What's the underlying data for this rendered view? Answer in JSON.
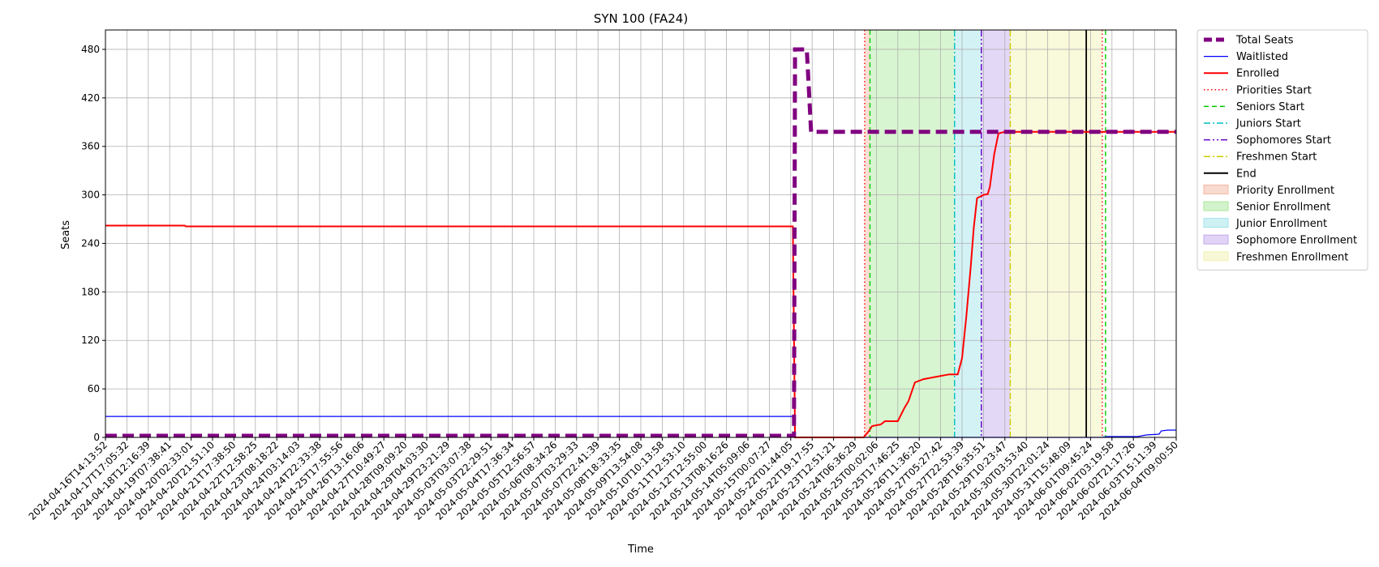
{
  "chart_data": {
    "type": "line",
    "title": "SYN 100 (FA24)",
    "xlabel": "Time",
    "ylabel": "Seats",
    "ylim": [
      0,
      504
    ],
    "yticks": [
      0,
      60,
      120,
      180,
      240,
      300,
      360,
      420,
      480
    ],
    "grid": true,
    "legend_position": "outside-right",
    "x_tick_labels": [
      "2024-04-16T14:13:52",
      "2024-04-17T17:05:32",
      "2024-04-18T12:16:39",
      "2024-04-19T07:38:41",
      "2024-04-20T02:33:01",
      "2024-04-20T21:51:10",
      "2024-04-21T17:38:50",
      "2024-04-22T12:58:25",
      "2024-04-23T08:18:22",
      "2024-04-24T03:14:03",
      "2024-04-24T22:33:38",
      "2024-04-25T17:55:56",
      "2024-04-26T13:16:06",
      "2024-04-27T10:49:27",
      "2024-04-28T09:09:20",
      "2024-04-29T04:03:30",
      "2024-04-29T23:21:29",
      "2024-05-03T03:07:38",
      "2024-05-03T22:29:51",
      "2024-05-04T17:36:34",
      "2024-05-05T12:56:57",
      "2024-05-06T08:34:26",
      "2024-05-07T03:29:33",
      "2024-05-07T22:41:39",
      "2024-05-08T18:33:35",
      "2024-05-09T13:54:08",
      "2024-05-10T10:13:58",
      "2024-05-11T12:53:10",
      "2024-05-12T12:55:00",
      "2024-05-13T08:16:26",
      "2024-05-14T05:09:06",
      "2024-05-15T00:07:27",
      "2024-05-22T01:44:05",
      "2024-05-22T19:17:55",
      "2024-05-23T12:51:21",
      "2024-05-24T06:36:29",
      "2024-05-25T00:02:06",
      "2024-05-25T17:46:25",
      "2024-05-26T11:36:20",
      "2024-05-27T05:27:42",
      "2024-05-27T22:53:39",
      "2024-05-28T16:35:51",
      "2024-05-29T10:23:47",
      "2024-05-30T03:53:40",
      "2024-05-30T22:01:24",
      "2024-05-31T15:48:09",
      "2024-06-01T09:45:24",
      "2024-06-02T03:19:58",
      "2024-06-02T21:17:26",
      "2024-06-03T15:11:39",
      "2024-06-04T09:00:50"
    ],
    "x_range": [
      0,
      50
    ],
    "series": [
      {
        "name": "Total Seats",
        "color": "#800080",
        "style": "dashed-thick",
        "points": [
          [
            0,
            2
          ],
          [
            32.15,
            2
          ],
          [
            32.2,
            480
          ],
          [
            32.75,
            480
          ],
          [
            32.95,
            378
          ],
          [
            50,
            378
          ]
        ]
      },
      {
        "name": "Waitlisted",
        "color": "#0000ff",
        "style": "solid-thin",
        "points": [
          [
            0,
            26
          ],
          [
            32.15,
            26
          ],
          [
            32.2,
            0
          ],
          [
            46.5,
            0
          ],
          [
            46.8,
            1
          ],
          [
            48.2,
            1
          ],
          [
            48.6,
            3
          ],
          [
            49.2,
            4
          ],
          [
            49.3,
            8
          ],
          [
            49.6,
            9
          ],
          [
            50,
            9
          ]
        ]
      },
      {
        "name": "Enrolled",
        "color": "#ff0000",
        "style": "solid",
        "points": [
          [
            0,
            262
          ],
          [
            3.7,
            262
          ],
          [
            3.75,
            261
          ],
          [
            32.1,
            261
          ],
          [
            32.2,
            0
          ],
          [
            35.4,
            0
          ],
          [
            35.65,
            8
          ],
          [
            35.8,
            14
          ],
          [
            36.2,
            16
          ],
          [
            36.4,
            20
          ],
          [
            37.0,
            20
          ],
          [
            37.3,
            36
          ],
          [
            37.5,
            45
          ],
          [
            37.8,
            68
          ],
          [
            38.2,
            72
          ],
          [
            38.8,
            75
          ],
          [
            39.4,
            78
          ],
          [
            39.8,
            78
          ],
          [
            40.0,
            98
          ],
          [
            40.2,
            150
          ],
          [
            40.4,
            210
          ],
          [
            40.55,
            260
          ],
          [
            40.7,
            296
          ],
          [
            41.0,
            300
          ],
          [
            41.2,
            301
          ],
          [
            41.3,
            310
          ],
          [
            41.5,
            350
          ],
          [
            41.7,
            376
          ],
          [
            42.0,
            378
          ],
          [
            50,
            378
          ]
        ]
      }
    ],
    "vertical_markers": [
      {
        "name": "Priorities Start",
        "color": "#ff0000",
        "style": "dotted",
        "x": 35.45
      },
      {
        "name": "Seniors Start",
        "color": "#00cc00",
        "style": "dashed",
        "x": 35.7
      },
      {
        "name": "Juniors Start",
        "color": "#00bfbf",
        "style": "dashdot",
        "x": 39.65
      },
      {
        "name": "Sophomores Start",
        "color": "#6600cc",
        "style": "dashdotdot",
        "x": 40.9
      },
      {
        "name": "Freshmen Start",
        "color": "#cccc00",
        "style": "dashdot",
        "x": 42.25
      },
      {
        "name": "End",
        "color": "#000000",
        "style": "solid",
        "x": 45.8
      },
      {
        "name": "",
        "color": "#ff0000",
        "style": "dotted",
        "x": 46.55
      },
      {
        "name": "",
        "color": "#00cc00",
        "style": "dashed",
        "x": 46.7
      }
    ],
    "spans": [
      {
        "name": "Priority Enrollment",
        "color": "#f4b6a0",
        "x0": 35.45,
        "x1": 35.7
      },
      {
        "name": "Senior Enrollment",
        "color": "#a8e89a",
        "x0": 35.7,
        "x1": 39.65
      },
      {
        "name": "Junior Enrollment",
        "color": "#9ee3ea",
        "x0": 39.65,
        "x1": 40.9
      },
      {
        "name": "Sophomore Enrollment",
        "color": "#c3a8ee",
        "x0": 40.9,
        "x1": 42.25
      },
      {
        "name": "Freshmen Enrollment",
        "color": "#f2f2b0",
        "x0": 42.25,
        "x1": 46.55
      }
    ],
    "legend": [
      {
        "label": "Total Seats",
        "kind": "line",
        "color": "#800080",
        "style": "dashed-thick"
      },
      {
        "label": "Waitlisted",
        "kind": "line",
        "color": "#0000ff",
        "style": "solid-thin"
      },
      {
        "label": "Enrolled",
        "kind": "line",
        "color": "#ff0000",
        "style": "solid"
      },
      {
        "label": "Priorities Start",
        "kind": "line",
        "color": "#ff0000",
        "style": "dotted"
      },
      {
        "label": "Seniors Start",
        "kind": "line",
        "color": "#00cc00",
        "style": "dashed"
      },
      {
        "label": "Juniors Start",
        "kind": "line",
        "color": "#00bfbf",
        "style": "dashdot"
      },
      {
        "label": "Sophomores Start",
        "kind": "line",
        "color": "#6600cc",
        "style": "dashdotdot"
      },
      {
        "label": "Freshmen Start",
        "kind": "line",
        "color": "#cccc00",
        "style": "dashdot"
      },
      {
        "label": "End",
        "kind": "line",
        "color": "#000000",
        "style": "solid"
      },
      {
        "label": "Priority Enrollment",
        "kind": "patch",
        "color": "#f4b6a0"
      },
      {
        "label": "Senior Enrollment",
        "kind": "patch",
        "color": "#a8e89a"
      },
      {
        "label": "Junior Enrollment",
        "kind": "patch",
        "color": "#9ee3ea"
      },
      {
        "label": "Sophomore Enrollment",
        "kind": "patch",
        "color": "#c3a8ee"
      },
      {
        "label": "Freshmen Enrollment",
        "kind": "patch",
        "color": "#f2f2b0"
      }
    ]
  }
}
